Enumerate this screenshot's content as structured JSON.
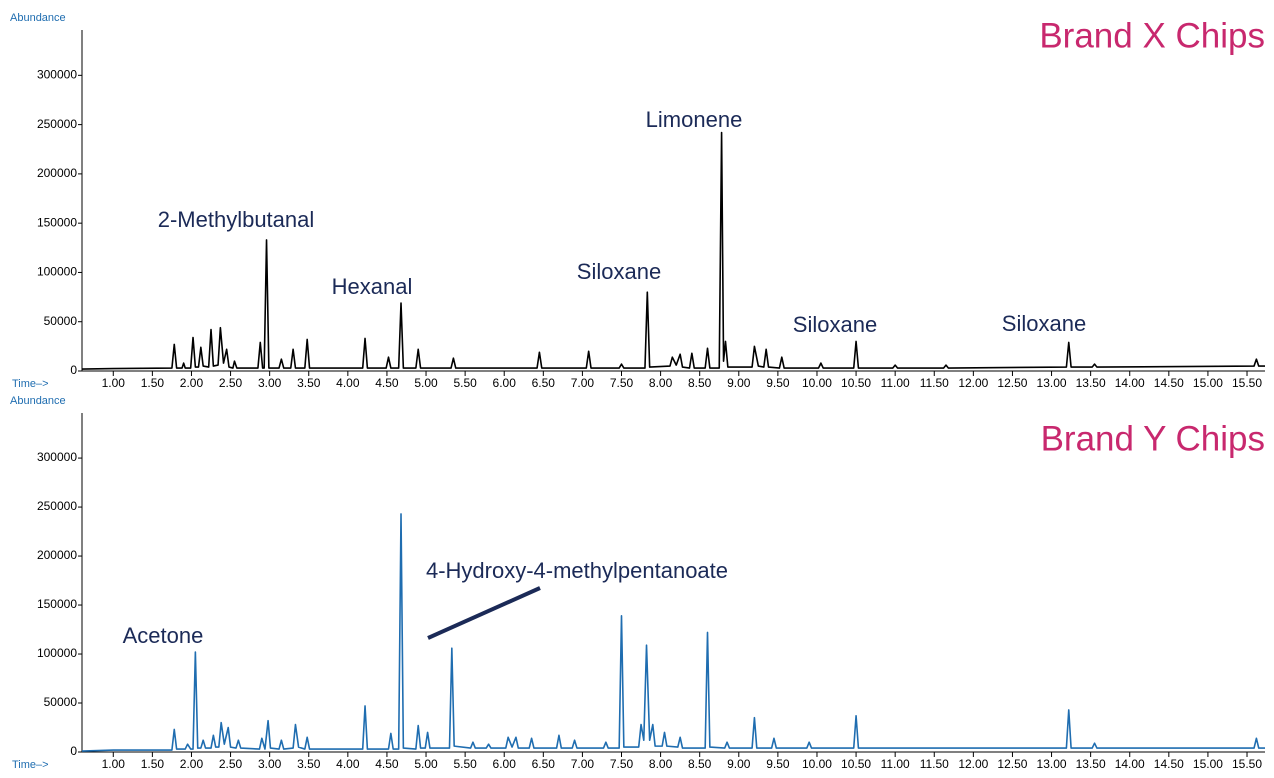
{
  "chart_data": [
    {
      "type": "line",
      "title": "Brand X Chips",
      "title_color": "#c8286e",
      "xlabel": "Time–>",
      "ylabel": "Abundance",
      "axis_label_color": "#1f6db0",
      "annotations": [
        "2-Methylbutanal",
        "Hexanal",
        "Siloxane",
        "Limonene",
        "Siloxane",
        "Siloxane"
      ],
      "xlim": [
        0.6,
        15.73
      ],
      "ylim": [
        0,
        346000
      ],
      "xticks": [
        {
          "value": 1,
          "label": "1.00"
        },
        {
          "value": 1.5,
          "label": "1.50"
        },
        {
          "value": 2,
          "label": "2.00"
        },
        {
          "value": 2.5,
          "label": "2.50"
        },
        {
          "value": 3,
          "label": "3.00"
        },
        {
          "value": 3.5,
          "label": "3.50"
        },
        {
          "value": 4,
          "label": "4.00"
        },
        {
          "value": 4.5,
          "label": "4.50"
        },
        {
          "value": 5,
          "label": "5.00"
        },
        {
          "value": 5.5,
          "label": "5.50"
        },
        {
          "value": 6,
          "label": "6.00"
        },
        {
          "value": 6.5,
          "label": "6.50"
        },
        {
          "value": 7,
          "label": "7.00"
        },
        {
          "value": 7.5,
          "label": "7.50"
        },
        {
          "value": 8,
          "label": "8.00"
        },
        {
          "value": 8.5,
          "label": "8.50"
        },
        {
          "value": 9,
          "label": "9.00"
        },
        {
          "value": 9.5,
          "label": "9.50"
        },
        {
          "value": 10,
          "label": "10.00"
        },
        {
          "value": 10.5,
          "label": "10.50"
        },
        {
          "value": 11,
          "label": "11.00"
        },
        {
          "value": 11.5,
          "label": "11.50"
        },
        {
          "value": 12,
          "label": "12.00"
        },
        {
          "value": 12.5,
          "label": "12.50"
        },
        {
          "value": 13,
          "label": "13.00"
        },
        {
          "value": 13.5,
          "label": "13.50"
        },
        {
          "value": 14,
          "label": "14.00"
        },
        {
          "value": 14.5,
          "label": "14.50"
        },
        {
          "value": 15,
          "label": "15.00"
        },
        {
          "value": 15.5,
          "label": "15.50"
        }
      ],
      "yticks": [
        0,
        50000,
        100000,
        150000,
        200000,
        250000,
        300000
      ],
      "series": [
        {
          "color": "#000000",
          "x": [
            0.6,
            1,
            1.75,
            1.78,
            1.81,
            1.88,
            1.9,
            1.92,
            1.99,
            2.02,
            2.05,
            2.09,
            2.12,
            2.15,
            2.22,
            2.25,
            2.28,
            2.34,
            2.37,
            2.41,
            2.45,
            2.48,
            2.53,
            2.55,
            2.58,
            2.85,
            2.88,
            2.91,
            2.93,
            2.96,
            2.99,
            3.12,
            3.15,
            3.18,
            3.27,
            3.3,
            3.33,
            3.45,
            3.48,
            3.51,
            4.19,
            4.22,
            4.25,
            4.49,
            4.52,
            4.55,
            4.65,
            4.68,
            4.71,
            4.87,
            4.9,
            4.93,
            5.32,
            5.35,
            5.38,
            6.42,
            6.45,
            6.48,
            7.05,
            7.08,
            7.11,
            7.47,
            7.5,
            7.53,
            7.8,
            7.83,
            7.86,
            8.12,
            8.15,
            8.2,
            8.25,
            8.28,
            8.37,
            8.4,
            8.43,
            8.57,
            8.6,
            8.63,
            8.75,
            8.78,
            8.805,
            8.83,
            8.86,
            9.17,
            9.2,
            9.25,
            9.32,
            9.35,
            9.38,
            9.52,
            9.55,
            9.58,
            10.02,
            10.05,
            10.08,
            10.47,
            10.5,
            10.53,
            10.97,
            11,
            11.03,
            11.62,
            11.65,
            11.68,
            13.19,
            13.22,
            13.25,
            13.52,
            13.55,
            13.58,
            15.59,
            15.62,
            15.65,
            15.73
          ],
          "values": [
            2000,
            2500,
            3000,
            27000,
            3000,
            3000,
            8000,
            3000,
            3000,
            34000,
            4000,
            4000,
            24000,
            5000,
            4000,
            42000,
            5000,
            6000,
            44000,
            8000,
            22000,
            4000,
            3000,
            10000,
            3000,
            3000,
            29000,
            3000,
            3000,
            133000,
            3000,
            3000,
            12000,
            3000,
            3000,
            22000,
            3000,
            3000,
            32000,
            3000,
            3000,
            33000,
            3000,
            3000,
            14000,
            3000,
            3000,
            69000,
            3000,
            3000,
            22000,
            3000,
            3000,
            13000,
            3000,
            3000,
            19000,
            3000,
            3000,
            20000,
            3000,
            3000,
            7000,
            3000,
            3000,
            80000,
            4000,
            5000,
            14000,
            6000,
            17000,
            4000,
            3000,
            18000,
            3000,
            3000,
            23000,
            3000,
            3000,
            242000,
            10000,
            30000,
            4000,
            4000,
            25000,
            5000,
            4000,
            22000,
            4000,
            3000,
            14000,
            3000,
            3000,
            8000,
            3000,
            3000,
            30000,
            3000,
            3000,
            6000,
            3000,
            3000,
            6000,
            3000,
            4000,
            29000,
            4000,
            4000,
            7000,
            4000,
            5000,
            12000,
            5000,
            5000
          ]
        }
      ]
    },
    {
      "type": "line",
      "title": "Brand Y Chips",
      "title_color": "#c8286e",
      "xlabel": "Time–>",
      "ylabel": "Abundance",
      "axis_label_color": "#1f6db0",
      "annotations": [
        "Acetone",
        "4-Hydroxy-4-methylpentanoate"
      ],
      "xlim": [
        0.6,
        15.73
      ],
      "ylim": [
        0,
        346000
      ],
      "xticks": [
        {
          "value": 1,
          "label": "1.00"
        },
        {
          "value": 1.5,
          "label": "1.50"
        },
        {
          "value": 2,
          "label": "2.00"
        },
        {
          "value": 2.5,
          "label": "2.50"
        },
        {
          "value": 3,
          "label": "3.00"
        },
        {
          "value": 3.5,
          "label": "3.50"
        },
        {
          "value": 4,
          "label": "4.00"
        },
        {
          "value": 4.5,
          "label": "4.50"
        },
        {
          "value": 5,
          "label": "5.00"
        },
        {
          "value": 5.5,
          "label": "5.50"
        },
        {
          "value": 6,
          "label": "6.00"
        },
        {
          "value": 6.5,
          "label": "6.50"
        },
        {
          "value": 7,
          "label": "7.00"
        },
        {
          "value": 7.5,
          "label": "7.50"
        },
        {
          "value": 8,
          "label": "8.00"
        },
        {
          "value": 8.5,
          "label": "8.50"
        },
        {
          "value": 9,
          "label": "9.00"
        },
        {
          "value": 9.5,
          "label": "9.50"
        },
        {
          "value": 10,
          "label": "10.00"
        },
        {
          "value": 10.5,
          "label": "10.50"
        },
        {
          "value": 11,
          "label": "11.00"
        },
        {
          "value": 11.5,
          "label": "11.50"
        },
        {
          "value": 12,
          "label": "12.00"
        },
        {
          "value": 12.5,
          "label": "12.50"
        },
        {
          "value": 13,
          "label": "13.00"
        },
        {
          "value": 13.5,
          "label": "13.50"
        },
        {
          "value": 14,
          "label": "14.00"
        },
        {
          "value": 14.5,
          "label": "14.50"
        },
        {
          "value": 15,
          "label": "15.00"
        },
        {
          "value": 15.5,
          "label": "15.50"
        }
      ],
      "yticks": [
        0,
        50000,
        100000,
        150000,
        200000,
        250000,
        300000
      ],
      "series": [
        {
          "color": "#1f6db0",
          "x": [
            0.6,
            1,
            1.75,
            1.78,
            1.81,
            1.92,
            1.95,
            1.99,
            2.02,
            2.05,
            2.08,
            2.12,
            2.15,
            2.18,
            2.25,
            2.28,
            2.31,
            2.35,
            2.38,
            2.42,
            2.47,
            2.5,
            2.57,
            2.6,
            2.63,
            2.87,
            2.9,
            2.94,
            2.98,
            3.01,
            3.12,
            3.15,
            3.18,
            3.3,
            3.33,
            3.37,
            3.45,
            3.48,
            3.51,
            4.19,
            4.22,
            4.25,
            4.52,
            4.55,
            4.58,
            4.65,
            4.68,
            4.71,
            4.87,
            4.9,
            4.93,
            4.99,
            5.02,
            5.05,
            5.3,
            5.33,
            5.36,
            5.57,
            5.6,
            5.63,
            5.77,
            5.8,
            5.83,
            6.02,
            6.05,
            6.1,
            6.15,
            6.18,
            6.32,
            6.35,
            6.38,
            6.67,
            6.7,
            6.73,
            6.87,
            6.9,
            6.93,
            7.27,
            7.3,
            7.33,
            7.47,
            7.5,
            7.53,
            7.72,
            7.75,
            7.785,
            7.82,
            7.86,
            7.9,
            7.93,
            8.02,
            8.05,
            8.08,
            8.22,
            8.25,
            8.28,
            8.57,
            8.6,
            8.63,
            8.82,
            8.85,
            8.88,
            9.17,
            9.2,
            9.23,
            9.42,
            9.45,
            9.48,
            9.87,
            9.9,
            9.93,
            10.47,
            10.5,
            10.53,
            13.19,
            13.22,
            13.25,
            13.52,
            13.55,
            13.58,
            15.59,
            15.62,
            15.65,
            15.73
          ],
          "values": [
            1000,
            2000,
            2000,
            23000,
            3000,
            3000,
            8000,
            3000,
            3000,
            102000,
            4000,
            4000,
            12000,
            4000,
            4000,
            17000,
            5000,
            5000,
            30000,
            8000,
            25000,
            5000,
            4000,
            12000,
            4000,
            3000,
            14000,
            3000,
            32000,
            4000,
            3000,
            12000,
            3000,
            4000,
            28000,
            5000,
            3000,
            15000,
            3000,
            3000,
            47000,
            3000,
            3000,
            19000,
            3000,
            3000,
            243000,
            4000,
            3000,
            27000,
            4000,
            4000,
            20000,
            4000,
            4000,
            106000,
            6000,
            4000,
            10000,
            4000,
            4000,
            8000,
            4000,
            4000,
            15000,
            5000,
            15000,
            4000,
            4000,
            14000,
            4000,
            4000,
            17000,
            4000,
            4000,
            12000,
            4000,
            4000,
            10000,
            4000,
            4000,
            139000,
            5000,
            5000,
            28000,
            12000,
            109000,
            12000,
            28000,
            6000,
            6000,
            20000,
            6000,
            5000,
            15000,
            4000,
            4000,
            122000,
            5000,
            4000,
            10000,
            4000,
            4000,
            35000,
            4000,
            4000,
            14000,
            4000,
            4000,
            10000,
            4000,
            4000,
            37000,
            4000,
            4000,
            43000,
            4000,
            4000,
            9000,
            4000,
            4000,
            14000,
            4000,
            4000
          ]
        }
      ]
    }
  ]
}
